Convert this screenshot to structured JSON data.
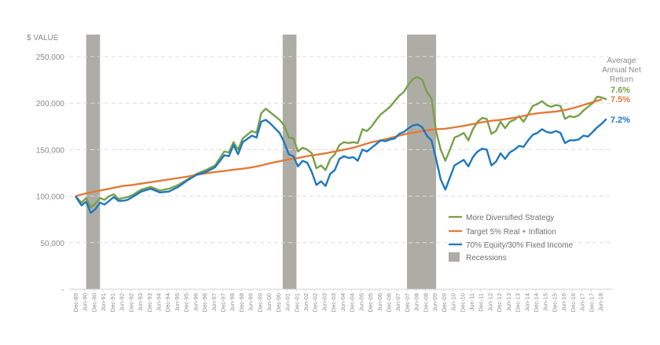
{
  "chart_data": {
    "type": "line",
    "ylabel": "$ VALUE",
    "ylim": [
      0,
      250000
    ],
    "y_ticks": [
      {
        "value": 250000,
        "label": "250,000"
      },
      {
        "value": 200000,
        "label": "200,000"
      },
      {
        "value": 150000,
        "label": "150,000"
      },
      {
        "value": 100000,
        "label": "100,000"
      },
      {
        "value": 50000,
        "label": "50,000"
      },
      {
        "value": 0,
        "label": "-"
      }
    ],
    "grid": "horizontal dashed",
    "x_labels": [
      "Dec-89",
      "Jun-90",
      "Dec-90",
      "Jun-91",
      "Dec-91",
      "Jun-92",
      "Dec-92",
      "Jun-93",
      "Dec-93",
      "Jun-94",
      "Dec-94",
      "Jun-95",
      "Dec-95",
      "Jun-96",
      "Dec-96",
      "Jun-97",
      "Dec-97",
      "Jun-98",
      "Dec-98",
      "Jun-99",
      "Dec-99",
      "Jun-00",
      "Dec-00",
      "Jun-01",
      "Dec-01",
      "Jun-02",
      "Dec-02",
      "Jun-03",
      "Dec-03",
      "Jun-04",
      "Dec-04",
      "Jun-05",
      "Dec-05",
      "Jun-06",
      "Dec-06",
      "Jun-07",
      "Dec-07",
      "Jun-08",
      "Dec-08",
      "Jun-09",
      "Dec-09",
      "Jun-10",
      "Dec-10",
      "Jun-11",
      "Dec-11",
      "Jun-12",
      "Dec-12",
      "Jun-13",
      "Dec-13",
      "Jun-14",
      "Dec-14",
      "Jun-15",
      "Dec-15",
      "Jun-16",
      "Dec-16",
      "Jun-17",
      "Dec-17",
      "Jun-18"
    ],
    "x_start": 1989.917,
    "x_end": 2018.5,
    "recessions": [
      {
        "start": 1990.5,
        "end": 1991.25
      },
      {
        "start": 2001.17,
        "end": 2001.92
      },
      {
        "start": 2007.92,
        "end": 2009.5
      }
    ],
    "series": [
      {
        "name": "More Diversified Strategy",
        "color": "#77a14a",
        "end_label": "7.6%",
        "points": [
          [
            1989.917,
            100000
          ],
          [
            1990.25,
            93000
          ],
          [
            1990.5,
            98000
          ],
          [
            1990.75,
            88000
          ],
          [
            1991.0,
            92000
          ],
          [
            1991.25,
            98000
          ],
          [
            1991.5,
            96000
          ],
          [
            1991.75,
            100000
          ],
          [
            1992.0,
            102000
          ],
          [
            1992.25,
            97000
          ],
          [
            1992.5,
            98000
          ],
          [
            1992.75,
            99000
          ],
          [
            1993.0,
            101000
          ],
          [
            1993.5,
            107000
          ],
          [
            1994.0,
            110000
          ],
          [
            1994.5,
            106000
          ],
          [
            1995.0,
            108000
          ],
          [
            1995.5,
            112000
          ],
          [
            1996.0,
            118000
          ],
          [
            1996.5,
            124000
          ],
          [
            1997.0,
            128000
          ],
          [
            1997.5,
            133000
          ],
          [
            1998.0,
            148000
          ],
          [
            1998.25,
            147000
          ],
          [
            1998.5,
            158000
          ],
          [
            1998.75,
            150000
          ],
          [
            1999.0,
            162000
          ],
          [
            1999.5,
            170000
          ],
          [
            1999.75,
            168000
          ],
          [
            2000.0,
            189000
          ],
          [
            2000.25,
            194000
          ],
          [
            2000.5,
            190000
          ],
          [
            2000.75,
            186000
          ],
          [
            2001.0,
            182000
          ],
          [
            2001.25,
            176000
          ],
          [
            2001.5,
            163000
          ],
          [
            2001.75,
            162000
          ],
          [
            2002.0,
            148000
          ],
          [
            2002.25,
            152000
          ],
          [
            2002.5,
            150000
          ],
          [
            2002.75,
            146000
          ],
          [
            2003.0,
            130000
          ],
          [
            2003.25,
            133000
          ],
          [
            2003.5,
            128000
          ],
          [
            2003.75,
            140000
          ],
          [
            2004.0,
            145000
          ],
          [
            2004.25,
            155000
          ],
          [
            2004.5,
            158000
          ],
          [
            2004.75,
            157000
          ],
          [
            2005.0,
            158000
          ],
          [
            2005.25,
            157000
          ],
          [
            2005.5,
            172000
          ],
          [
            2005.75,
            170000
          ],
          [
            2006.0,
            175000
          ],
          [
            2006.25,
            182000
          ],
          [
            2006.5,
            188000
          ],
          [
            2006.75,
            192000
          ],
          [
            2007.0,
            196000
          ],
          [
            2007.25,
            202000
          ],
          [
            2007.5,
            208000
          ],
          [
            2007.75,
            212000
          ],
          [
            2008.0,
            220000
          ],
          [
            2008.25,
            226000
          ],
          [
            2008.5,
            228000
          ],
          [
            2008.75,
            225000
          ],
          [
            2009.0,
            212000
          ],
          [
            2009.25,
            205000
          ],
          [
            2009.5,
            170000
          ],
          [
            2009.75,
            150000
          ],
          [
            2010.0,
            138000
          ],
          [
            2010.25,
            150000
          ],
          [
            2010.5,
            163000
          ],
          [
            2010.75,
            165000
          ],
          [
            2011.0,
            168000
          ],
          [
            2011.25,
            160000
          ],
          [
            2011.5,
            172000
          ],
          [
            2011.75,
            180000
          ],
          [
            2012.0,
            184000
          ],
          [
            2012.25,
            183000
          ],
          [
            2012.5,
            167000
          ],
          [
            2012.75,
            170000
          ],
          [
            2013.0,
            180000
          ],
          [
            2013.25,
            173000
          ],
          [
            2013.5,
            180000
          ],
          [
            2013.75,
            182000
          ],
          [
            2014.0,
            186000
          ],
          [
            2014.25,
            180000
          ],
          [
            2014.5,
            188000
          ],
          [
            2014.75,
            197000
          ],
          [
            2015.0,
            199000
          ],
          [
            2015.25,
            202000
          ],
          [
            2015.5,
            198000
          ],
          [
            2015.75,
            196000
          ],
          [
            2016.0,
            198000
          ],
          [
            2016.25,
            197000
          ],
          [
            2016.5,
            183000
          ],
          [
            2016.75,
            186000
          ],
          [
            2017.0,
            185000
          ],
          [
            2017.25,
            187000
          ],
          [
            2017.5,
            192000
          ],
          [
            2017.75,
            196000
          ],
          [
            2018.0,
            200000
          ],
          [
            2018.25,
            207000
          ],
          [
            2018.5,
            206000
          ],
          [
            2018.75,
            204000
          ],
          [
            2019.0,
            208000
          ]
        ]
      },
      {
        "name": "Target 5% Real + Inflation",
        "color": "#e07b39",
        "end_label": "7.5%",
        "points": [
          [
            1989.917,
            100000
          ],
          [
            1990.5,
            103000
          ],
          [
            1991.0,
            105000
          ],
          [
            1991.5,
            107000
          ],
          [
            1992.0,
            109000
          ],
          [
            1992.5,
            111000
          ],
          [
            1993.0,
            112000
          ],
          [
            1993.5,
            113500
          ],
          [
            1994.0,
            115000
          ],
          [
            1994.5,
            116500
          ],
          [
            1995.0,
            118000
          ],
          [
            1995.5,
            119500
          ],
          [
            1996.0,
            121000
          ],
          [
            1996.5,
            123000
          ],
          [
            1997.0,
            124500
          ],
          [
            1997.5,
            126000
          ],
          [
            1998.0,
            127000
          ],
          [
            1998.5,
            128500
          ],
          [
            1999.0,
            129500
          ],
          [
            1999.5,
            131000
          ],
          [
            2000.0,
            133000
          ],
          [
            2000.5,
            135500
          ],
          [
            2001.0,
            137500
          ],
          [
            2001.5,
            139500
          ],
          [
            2002.0,
            141000
          ],
          [
            2002.5,
            143000
          ],
          [
            2003.0,
            144500
          ],
          [
            2003.5,
            146000
          ],
          [
            2004.0,
            148000
          ],
          [
            2004.5,
            150000
          ],
          [
            2005.0,
            152000
          ],
          [
            2005.5,
            155000
          ],
          [
            2006.0,
            158000
          ],
          [
            2006.5,
            160000
          ],
          [
            2007.0,
            162500
          ],
          [
            2007.5,
            165000
          ],
          [
            2008.0,
            167500
          ],
          [
            2008.5,
            169000
          ],
          [
            2009.0,
            171000
          ],
          [
            2009.5,
            172000
          ],
          [
            2010.0,
            172500
          ],
          [
            2010.5,
            174000
          ],
          [
            2011.0,
            175500
          ],
          [
            2011.5,
            177500
          ],
          [
            2012.0,
            179500
          ],
          [
            2012.5,
            181000
          ],
          [
            2013.0,
            182000
          ],
          [
            2013.5,
            183500
          ],
          [
            2014.0,
            185000
          ],
          [
            2014.5,
            187500
          ],
          [
            2015.0,
            189000
          ],
          [
            2015.5,
            190000
          ],
          [
            2016.0,
            191000
          ],
          [
            2016.5,
            192500
          ],
          [
            2017.0,
            195000
          ],
          [
            2017.5,
            198000
          ],
          [
            2018.0,
            201000
          ],
          [
            2018.5,
            204000
          ],
          [
            2019.0,
            206000
          ]
        ]
      },
      {
        "name": "70% Equity/30% Fixed Income",
        "color": "#1f77c0",
        "end_label": "7.2%",
        "points": [
          [
            1989.917,
            100000
          ],
          [
            1990.25,
            90000
          ],
          [
            1990.5,
            94000
          ],
          [
            1990.75,
            82000
          ],
          [
            1991.0,
            86000
          ],
          [
            1991.25,
            93000
          ],
          [
            1991.5,
            91000
          ],
          [
            1991.75,
            95000
          ],
          [
            1992.0,
            99000
          ],
          [
            1992.25,
            95000
          ],
          [
            1992.5,
            95000
          ],
          [
            1992.75,
            96000
          ],
          [
            1993.0,
            99000
          ],
          [
            1993.5,
            105000
          ],
          [
            1994.0,
            108000
          ],
          [
            1994.5,
            104000
          ],
          [
            1995.0,
            105000
          ],
          [
            1995.5,
            110000
          ],
          [
            1996.0,
            117000
          ],
          [
            1996.5,
            123000
          ],
          [
            1997.0,
            126000
          ],
          [
            1997.5,
            131000
          ],
          [
            1998.0,
            144000
          ],
          [
            1998.25,
            143000
          ],
          [
            1998.5,
            155000
          ],
          [
            1998.75,
            145000
          ],
          [
            1999.0,
            158000
          ],
          [
            1999.5,
            165000
          ],
          [
            1999.75,
            163000
          ],
          [
            2000.0,
            180000
          ],
          [
            2000.25,
            182000
          ],
          [
            2000.5,
            178000
          ],
          [
            2000.75,
            173000
          ],
          [
            2001.0,
            168000
          ],
          [
            2001.25,
            158000
          ],
          [
            2001.5,
            145000
          ],
          [
            2001.75,
            143000
          ],
          [
            2002.0,
            132000
          ],
          [
            2002.25,
            138000
          ],
          [
            2002.5,
            136000
          ],
          [
            2002.75,
            126000
          ],
          [
            2003.0,
            112000
          ],
          [
            2003.25,
            116000
          ],
          [
            2003.5,
            111000
          ],
          [
            2003.75,
            124000
          ],
          [
            2004.0,
            128000
          ],
          [
            2004.25,
            140000
          ],
          [
            2004.5,
            143000
          ],
          [
            2004.75,
            141000
          ],
          [
            2005.0,
            142000
          ],
          [
            2005.25,
            138000
          ],
          [
            2005.5,
            150000
          ],
          [
            2005.75,
            148000
          ],
          [
            2006.0,
            152000
          ],
          [
            2006.25,
            156000
          ],
          [
            2006.5,
            160000
          ],
          [
            2006.75,
            159000
          ],
          [
            2007.0,
            161000
          ],
          [
            2007.25,
            162000
          ],
          [
            2007.5,
            167000
          ],
          [
            2007.75,
            169000
          ],
          [
            2008.0,
            173000
          ],
          [
            2008.25,
            176000
          ],
          [
            2008.5,
            177000
          ],
          [
            2008.75,
            174000
          ],
          [
            2009.0,
            165000
          ],
          [
            2009.25,
            160000
          ],
          [
            2009.5,
            140000
          ],
          [
            2009.75,
            118000
          ],
          [
            2010.0,
            107000
          ],
          [
            2010.25,
            120000
          ],
          [
            2010.5,
            133000
          ],
          [
            2010.75,
            136000
          ],
          [
            2011.0,
            139000
          ],
          [
            2011.25,
            132000
          ],
          [
            2011.5,
            142000
          ],
          [
            2011.75,
            148000
          ],
          [
            2012.0,
            151000
          ],
          [
            2012.25,
            150000
          ],
          [
            2012.5,
            133000
          ],
          [
            2012.75,
            137000
          ],
          [
            2013.0,
            146000
          ],
          [
            2013.25,
            140000
          ],
          [
            2013.5,
            147000
          ],
          [
            2013.75,
            150000
          ],
          [
            2014.0,
            154000
          ],
          [
            2014.25,
            153000
          ],
          [
            2014.5,
            160000
          ],
          [
            2014.75,
            166000
          ],
          [
            2015.0,
            168000
          ],
          [
            2015.25,
            172000
          ],
          [
            2015.5,
            169000
          ],
          [
            2015.75,
            168000
          ],
          [
            2016.0,
            170000
          ],
          [
            2016.25,
            168000
          ],
          [
            2016.5,
            157000
          ],
          [
            2016.75,
            160000
          ],
          [
            2017.0,
            160000
          ],
          [
            2017.25,
            161000
          ],
          [
            2017.5,
            165000
          ],
          [
            2017.75,
            164000
          ],
          [
            2018.0,
            169000
          ],
          [
            2018.25,
            174000
          ],
          [
            2018.5,
            178000
          ],
          [
            2018.75,
            183000
          ],
          [
            2019.0,
            179000
          ],
          [
            2019.25,
            178000
          ],
          [
            2019.5,
            181000
          ]
        ]
      }
    ],
    "recession_label": "Recessions",
    "recession_color": "#adada6",
    "annotation": [
      "Average",
      "Annual Net",
      "Return"
    ],
    "legend_position": "bottom-right"
  }
}
